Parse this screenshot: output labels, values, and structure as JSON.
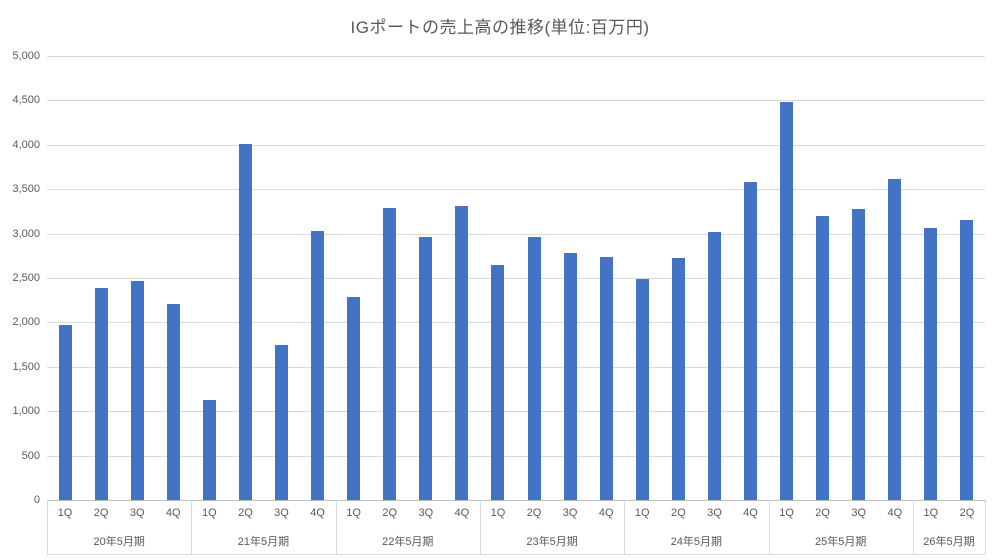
{
  "title": "IGポートの売上高の推移(単位:百万円)",
  "colors": {
    "bar": "#4472C4",
    "gridline": "#D9D9D9",
    "axis_line": "#BFBFBF",
    "text": "#595959"
  },
  "y_axis": {
    "min": 0,
    "max": 5000,
    "step": 500,
    "tick_labels": [
      "0",
      "500",
      "1,000",
      "1,500",
      "2,000",
      "2,500",
      "3,000",
      "3,500",
      "4,000",
      "4,500",
      "5,000"
    ]
  },
  "chart_data": {
    "type": "bar",
    "title": "IGポートの売上高の推移(単位:百万円)",
    "ylabel": "",
    "xlabel": "",
    "ylim": [
      0,
      5000
    ],
    "y_step": 500,
    "grid": true,
    "legend": false,
    "groups": [
      {
        "label": "20年5月期",
        "quarters": [
          "1Q",
          "2Q",
          "3Q",
          "4Q"
        ],
        "values": [
          1970,
          2390,
          2470,
          2210
        ]
      },
      {
        "label": "21年5月期",
        "quarters": [
          "1Q",
          "2Q",
          "3Q",
          "4Q"
        ],
        "values": [
          1130,
          4010,
          1750,
          3030
        ]
      },
      {
        "label": "22年5月期",
        "quarters": [
          "1Q",
          "2Q",
          "3Q",
          "4Q"
        ],
        "values": [
          2290,
          3290,
          2960,
          3310
        ]
      },
      {
        "label": "23年5月期",
        "quarters": [
          "1Q",
          "2Q",
          "3Q",
          "4Q"
        ],
        "values": [
          2650,
          2960,
          2780,
          2740
        ]
      },
      {
        "label": "24年5月期",
        "quarters": [
          "1Q",
          "2Q",
          "3Q",
          "4Q"
        ],
        "values": [
          2490,
          2730,
          3020,
          3580
        ]
      },
      {
        "label": "25年5月期",
        "quarters": [
          "1Q",
          "2Q",
          "3Q",
          "4Q"
        ],
        "values": [
          4480,
          3200,
          3280,
          3610
        ]
      },
      {
        "label": "26年5月期",
        "quarters": [
          "1Q",
          "2Q"
        ],
        "values": [
          3060,
          3150
        ]
      }
    ]
  }
}
